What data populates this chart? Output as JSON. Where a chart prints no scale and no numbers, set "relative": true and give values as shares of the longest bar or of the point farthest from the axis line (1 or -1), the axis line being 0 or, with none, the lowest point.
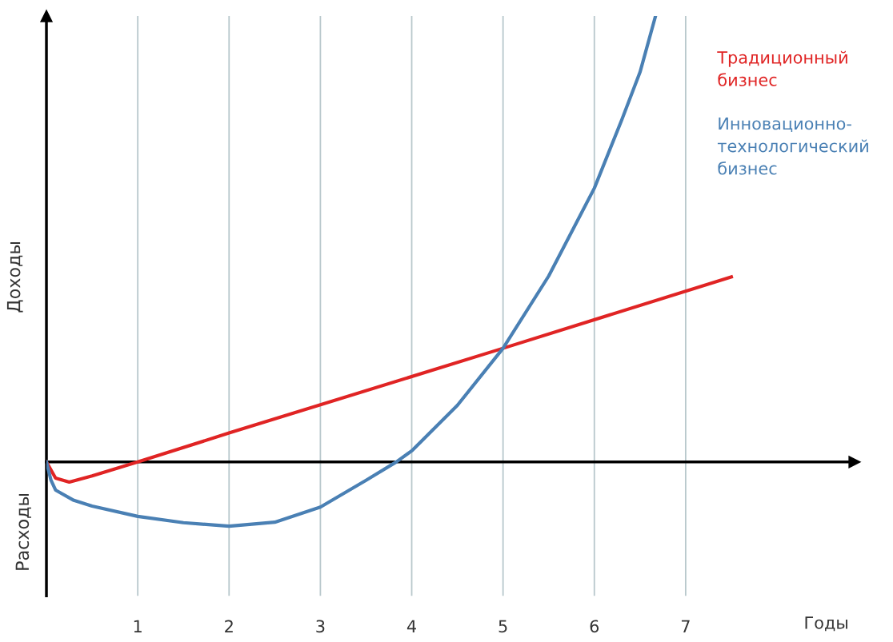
{
  "chart_data": {
    "type": "line",
    "relative": true,
    "xlabel": "Годы",
    "ylabel": "Доходы",
    "annotations": [
      "Расходы"
    ],
    "xlim": [
      0,
      8.85
    ],
    "xticks": [
      1,
      2,
      3,
      4,
      5,
      6,
      7
    ],
    "grid": "x",
    "legend": "top right",
    "marker": "none",
    "line_style": "solid",
    "series": [
      {
        "name": "Традиционный бизнес",
        "color": "#e02424",
        "x": [
          0,
          0.1,
          0.25,
          0.5,
          1,
          2,
          5,
          7.5
        ],
        "values": [
          0,
          -0.036,
          -0.045,
          -0.031,
          0,
          0.065,
          0.255,
          0.415
        ]
      },
      {
        "name": "Инновационно-технологический бизнес",
        "color": "#4a80b4",
        "x": [
          0,
          0.05,
          0.1,
          0.3,
          0.5,
          1,
          1.5,
          2,
          2.5,
          3,
          3.5,
          3.83,
          4,
          4.5,
          5,
          5.5,
          6,
          6.3,
          6.5,
          6.67
        ],
        "values": [
          0,
          -0.041,
          -0.063,
          -0.086,
          -0.099,
          -0.122,
          -0.136,
          -0.144,
          -0.135,
          -0.101,
          -0.041,
          0,
          0.025,
          0.127,
          0.255,
          0.417,
          0.614,
          0.767,
          0.874,
          1.0
        ]
      }
    ]
  }
}
